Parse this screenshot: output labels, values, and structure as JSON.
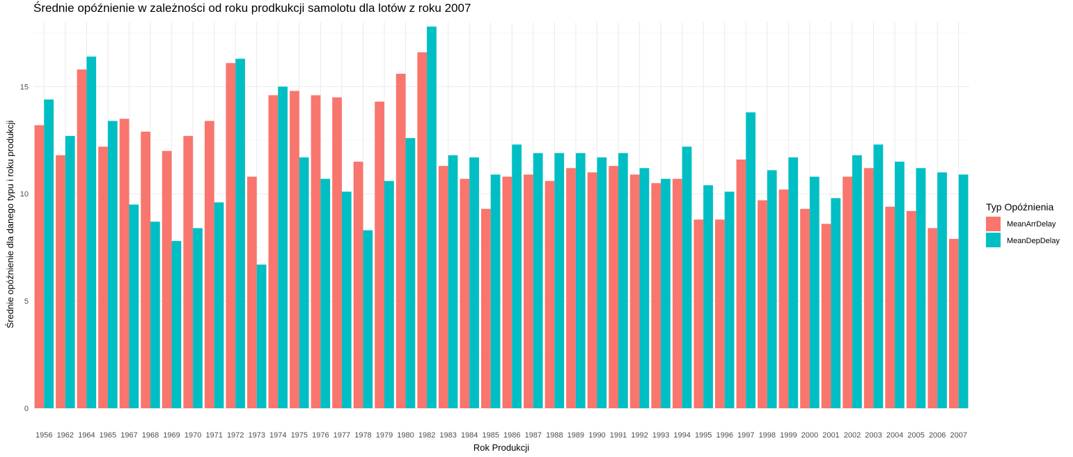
{
  "chart_data": {
    "type": "bar",
    "title": "Średnie opóźnienie w zależności od roku prodkukcji samolotu dla lotów z roku 2007",
    "xlabel": "Rok Produkcji",
    "ylabel": "Średnie opóźnienie dla danego typu i roku produkcji",
    "ylim": [
      0,
      18
    ],
    "yticks": [
      0,
      5,
      10,
      15
    ],
    "grid": true,
    "legend": {
      "title": "Typ Opóźnienia",
      "position": "right"
    },
    "categories": [
      "1956",
      "1962",
      "1964",
      "1965",
      "1967",
      "1968",
      "1969",
      "1970",
      "1971",
      "1972",
      "1973",
      "1974",
      "1975",
      "1976",
      "1977",
      "1978",
      "1979",
      "1980",
      "1982",
      "1983",
      "1984",
      "1985",
      "1986",
      "1987",
      "1988",
      "1989",
      "1990",
      "1991",
      "1992",
      "1993",
      "1994",
      "1995",
      "1996",
      "1997",
      "1998",
      "1999",
      "2000",
      "2001",
      "2002",
      "2003",
      "2004",
      "2005",
      "2006",
      "2007"
    ],
    "series": [
      {
        "name": "MeanArrDelay",
        "color": "#F8766D",
        "values": [
          13.2,
          11.8,
          15.8,
          12.2,
          13.5,
          12.9,
          12.0,
          12.7,
          13.4,
          16.1,
          10.8,
          14.6,
          14.8,
          14.6,
          14.5,
          11.5,
          14.3,
          15.6,
          16.6,
          11.3,
          10.7,
          9.3,
          10.8,
          10.9,
          10.6,
          11.2,
          11.0,
          11.3,
          10.9,
          10.5,
          10.7,
          8.8,
          8.8,
          11.6,
          9.7,
          10.2,
          9.3,
          8.6,
          10.8,
          11.2,
          9.4,
          9.2,
          8.4,
          7.9
        ]
      },
      {
        "name": "MeanDepDelay",
        "color": "#00BFC4",
        "values": [
          14.4,
          12.7,
          16.4,
          13.4,
          9.5,
          8.7,
          7.8,
          8.4,
          9.6,
          16.3,
          6.7,
          15.0,
          11.7,
          10.7,
          10.1,
          8.3,
          10.6,
          12.6,
          17.8,
          11.8,
          11.7,
          10.9,
          12.3,
          11.9,
          11.9,
          11.9,
          11.7,
          11.9,
          11.2,
          10.7,
          12.2,
          10.4,
          10.1,
          13.8,
          11.1,
          11.7,
          10.8,
          9.8,
          11.8,
          12.3,
          11.5,
          11.2,
          11.0,
          10.9
        ]
      }
    ]
  }
}
